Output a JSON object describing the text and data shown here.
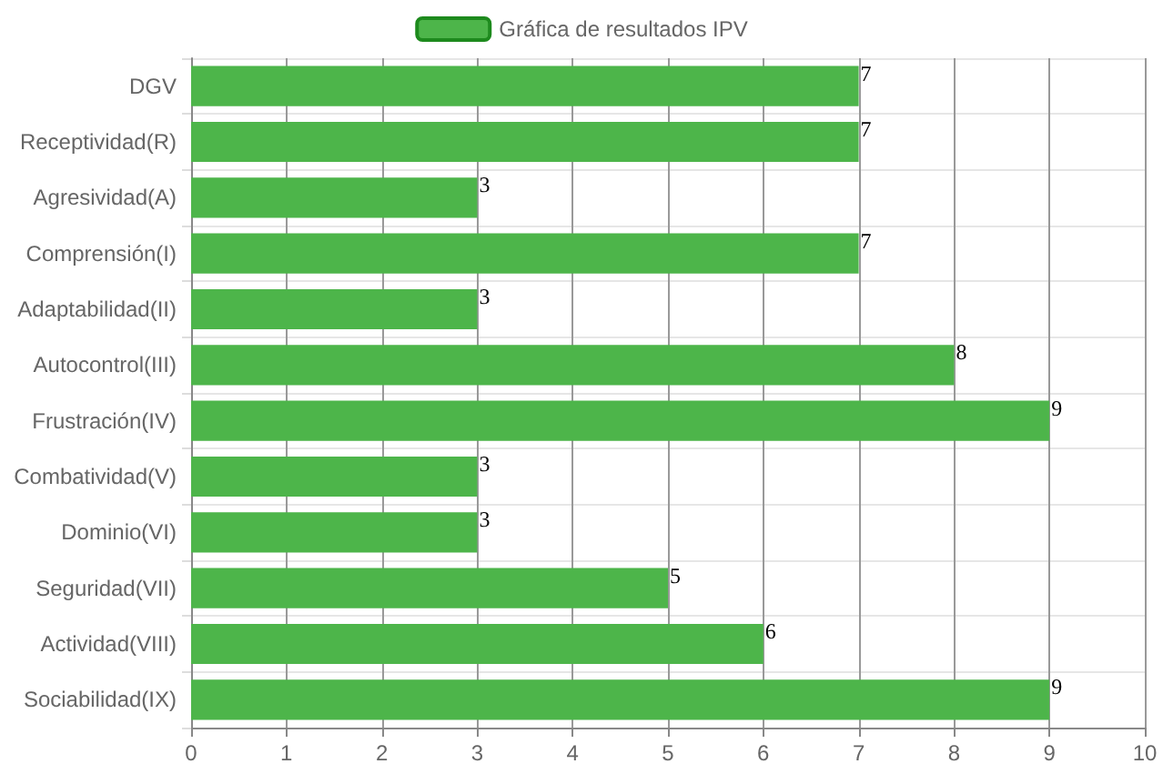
{
  "chart_data": {
    "type": "bar",
    "orientation": "horizontal",
    "categories": [
      "DGV",
      "Receptividad(R)",
      "Agresividad(A)",
      "Comprensión(I)",
      "Adaptabilidad(II)",
      "Autocontrol(III)",
      "Frustración(IV)",
      "Combatividad(V)",
      "Dominio(VI)",
      "Seguridad(VII)",
      "Actividad(VIII)",
      "Sociabilidad(IX)"
    ],
    "series": [
      {
        "name": "Gráfica de resultados IPV",
        "color": "#4db54a",
        "values": [
          7,
          7,
          3,
          7,
          3,
          8,
          9,
          3,
          3,
          5,
          6,
          9
        ]
      }
    ],
    "xlim": [
      0,
      10
    ],
    "xticks": [
      0,
      1,
      2,
      3,
      4,
      5,
      6,
      7,
      8,
      9,
      10
    ],
    "grid": true,
    "legend": "top",
    "data_labels": true
  }
}
